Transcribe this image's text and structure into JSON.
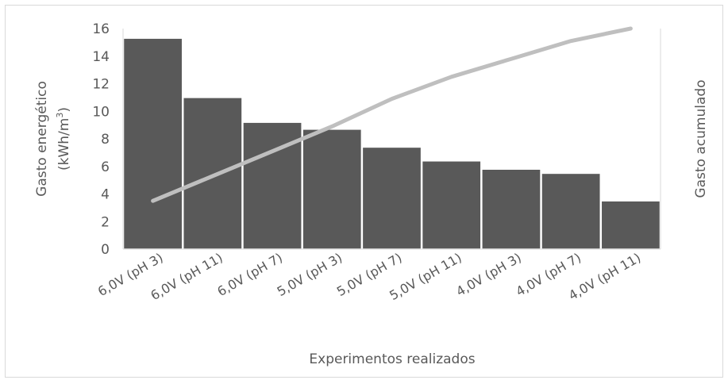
{
  "chart_data": {
    "type": "bar",
    "title": "",
    "xlabel": "Experimentos realizados",
    "ylabel_line1": "Gasto  energético",
    "ylabel_line2_prefix": "(kWh/m",
    "ylabel_line2_sup": "3",
    "ylabel_line2_suffix": ")",
    "y2label": "Gasto acumulado",
    "ylim": [
      0,
      16
    ],
    "yticks": [
      0,
      2,
      4,
      6,
      8,
      10,
      12,
      14,
      16
    ],
    "categories": [
      "6,0V (pH 3)",
      "6,0V (pH 11)",
      "6,0V  (pH 7)",
      "5,0V (pH 3)",
      "5,0V (pH 7)",
      "5,0V (pH 11)",
      "4,0V  (pH 3)",
      "4,0V  (pH 7)",
      "4,0V  (pH 11)"
    ],
    "series": [
      {
        "type": "bar",
        "values": [
          15.3,
          11.0,
          9.2,
          8.7,
          7.4,
          6.4,
          5.8,
          5.5,
          3.5
        ],
        "color": "#595959"
      },
      {
        "type": "line",
        "values": [
          3.5,
          5.3,
          7.1,
          8.9,
          10.9,
          12.5,
          13.8,
          15.1,
          16.0
        ],
        "color": "#bfbfbf"
      }
    ],
    "grid": false,
    "legend": "none"
  }
}
